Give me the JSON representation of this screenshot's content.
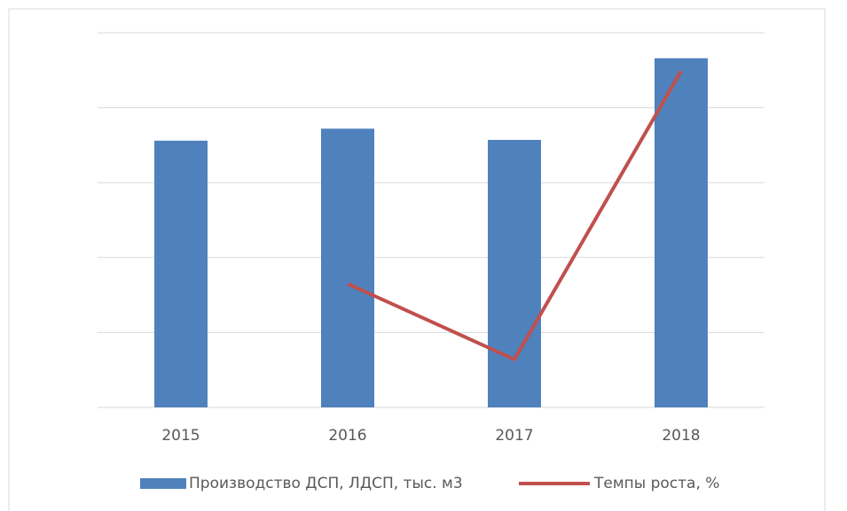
{
  "chart_data": {
    "type": "bar_line",
    "categories": [
      "2015",
      "2016",
      "2017",
      "2018"
    ],
    "series": [
      {
        "name": "Производство ДСП, ЛДСП, тыс. м3",
        "type": "bar",
        "color": "#4f81bd",
        "values": [
          3.56,
          3.72,
          3.57,
          4.66
        ]
      },
      {
        "name": "Темпы роста, %",
        "type": "line",
        "color": "#c0504d",
        "values": [
          null,
          1.65,
          0.64,
          4.49
        ]
      }
    ],
    "ylim": [
      0,
      5
    ],
    "yticks": [
      0,
      1,
      2,
      3,
      4,
      5
    ],
    "grid": true,
    "legend": "bottom"
  }
}
